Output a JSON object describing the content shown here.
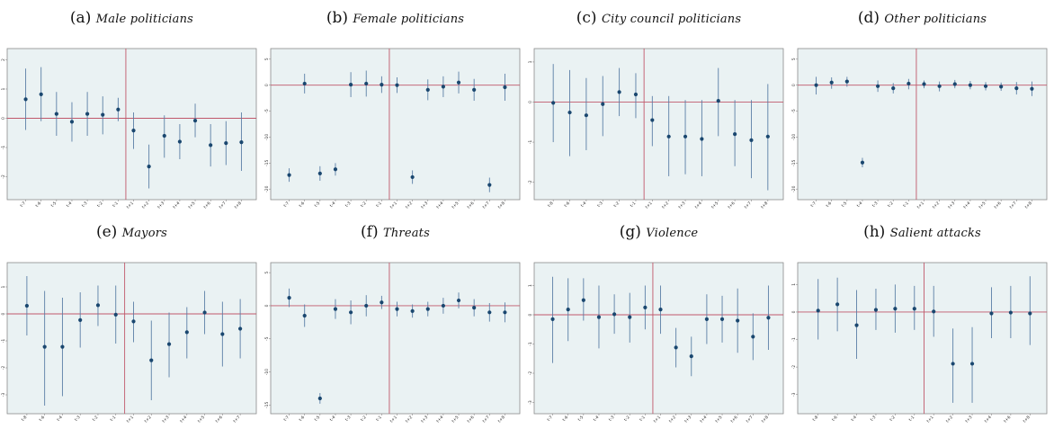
{
  "colors": {
    "marker": "#1a476f",
    "ci": "#5b7fa6",
    "zero_line": "#c0586b",
    "event_line": "#c0586b",
    "frame": "#8a8a8a",
    "plot_bg": "#eaf2f3"
  },
  "chart_data": [
    {
      "type": "scatter",
      "label": "(a)",
      "title": "Male politicians",
      "x": [
        "t-7",
        "t-6",
        "t-5",
        "t-4",
        "t-3",
        "t-2",
        "t-1",
        "t+1",
        "t+2",
        "t+3",
        "t+4",
        "t+5",
        "t+6",
        "t+7",
        "t+8"
      ],
      "event_after_index": 6,
      "ylim": [
        -2.6,
        2.2
      ],
      "yticks": [
        2,
        1,
        0,
        -1,
        -2
      ],
      "y": [
        0.65,
        0.82,
        0.15,
        -0.12,
        0.15,
        0.12,
        0.3,
        -0.42,
        -1.65,
        -0.6,
        -0.8,
        -0.08,
        -0.92,
        -0.85,
        -0.82
      ],
      "lo": [
        -0.4,
        -0.1,
        -0.6,
        -0.8,
        -0.6,
        -0.55,
        -0.1,
        -1.05,
        -2.4,
        -1.35,
        -1.4,
        -0.65,
        -1.65,
        -1.6,
        -1.8
      ],
      "hi": [
        1.7,
        1.75,
        0.9,
        0.55,
        0.9,
        0.75,
        0.7,
        0.2,
        -0.9,
        0.1,
        -0.2,
        0.5,
        -0.2,
        -0.1,
        0.2
      ]
    },
    {
      "type": "scatter",
      "label": "(b)",
      "title": "Female politicians",
      "x": [
        "t-7",
        "t-6",
        "t-5",
        "t-4",
        "t-3",
        "t-2",
        "t-1",
        "t+1",
        "t+2",
        "t+3",
        "t+4",
        "t+5",
        "t+6",
        "t+7",
        "t+8"
      ],
      "event_after_index": 6,
      "ylim": [
        -21,
        6
      ],
      "yticks": [
        5,
        0,
        -5,
        -10,
        -15,
        -20
      ],
      "y": [
        -17.3,
        0.3,
        -17.0,
        -16.2,
        0.1,
        0.3,
        0.1,
        0.0,
        -17.7,
        -0.9,
        -0.3,
        0.5,
        -0.9,
        -19.2,
        -0.4
      ],
      "lo": [
        -18.6,
        -1.6,
        -18.4,
        -17.4,
        -2.3,
        -2.2,
        -1.5,
        -1.5,
        -19.0,
        -2.9,
        -2.3,
        -1.6,
        -3.0,
        -20.6,
        -3.0
      ],
      "hi": [
        -16.0,
        2.2,
        -15.6,
        -15.0,
        2.5,
        2.8,
        1.7,
        1.5,
        -16.4,
        1.1,
        1.7,
        2.6,
        1.2,
        -17.8,
        2.2
      ]
    },
    {
      "type": "scatter",
      "label": "(c)",
      "title": "City council politicians",
      "x": [
        "t-8",
        "t-6",
        "t-4",
        "t-3",
        "t-2",
        "t-1",
        "t+1",
        "t+2",
        "t+3",
        "t+4",
        "t+5",
        "t+6",
        "t+7",
        "t+8"
      ],
      "event_after_index": 5,
      "ylim": [
        -2.3,
        1.2
      ],
      "yticks": [
        1,
        0,
        -1,
        -2
      ],
      "y": [
        -0.02,
        -0.26,
        -0.33,
        -0.05,
        0.25,
        0.19,
        -0.45,
        -0.86,
        -0.86,
        -0.92,
        0.03,
        -0.8,
        -0.95,
        -0.86
      ],
      "lo": [
        -1.0,
        -1.35,
        -1.2,
        -0.85,
        -0.35,
        -0.4,
        -1.1,
        -1.85,
        -1.8,
        -1.85,
        -0.85,
        -1.6,
        -1.9,
        -2.2
      ],
      "hi": [
        0.95,
        0.8,
        0.6,
        0.65,
        0.85,
        0.72,
        0.15,
        0.15,
        0.05,
        0.05,
        0.85,
        0.05,
        0.05,
        0.45
      ]
    },
    {
      "type": "scatter",
      "label": "(d)",
      "title": "Other politicians",
      "x": [
        "t-7",
        "t-6",
        "t-5",
        "t-4",
        "t-3",
        "t-2",
        "t-1",
        "t+1",
        "t+2",
        "t+3",
        "t+4",
        "t+5",
        "t+6",
        "t+7",
        "t+8"
      ],
      "event_after_index": 6,
      "ylim": [
        -21,
        6
      ],
      "yticks": [
        5,
        0,
        -5,
        -10,
        -15,
        -20
      ],
      "y": [
        0.0,
        0.5,
        0.7,
        -14.9,
        -0.2,
        -0.6,
        0.3,
        0.2,
        -0.2,
        0.2,
        0.0,
        -0.2,
        -0.3,
        -0.6,
        -0.7
      ],
      "lo": [
        -1.8,
        -0.7,
        -0.3,
        -15.8,
        -1.3,
        -1.6,
        -0.8,
        -0.6,
        -1.2,
        -0.6,
        -0.8,
        -1.0,
        -1.1,
        -1.8,
        -2.1
      ],
      "hi": [
        1.6,
        1.5,
        1.6,
        -14.0,
        0.9,
        0.4,
        1.2,
        0.9,
        0.7,
        1.0,
        0.8,
        0.6,
        0.5,
        0.6,
        0.7
      ]
    },
    {
      "type": "scatter",
      "label": "(e)",
      "title": "Mayors",
      "x": [
        "t-8",
        "t-6",
        "t-4",
        "t-3",
        "t-2",
        "t-1",
        "t+1",
        "t+2",
        "t+3",
        "t+4",
        "t+5",
        "t+6",
        "t+7"
      ],
      "event_after_index": 5,
      "ylim": [
        -3.5,
        1.7
      ],
      "yticks": [
        1,
        0,
        -1,
        -2,
        -3
      ],
      "y": [
        0.3,
        -1.22,
        -1.22,
        -0.23,
        0.32,
        -0.03,
        -0.28,
        -1.72,
        -1.12,
        -0.68,
        0.05,
        -0.75,
        -0.55
      ],
      "lo": [
        -0.8,
        -3.4,
        -3.05,
        -1.25,
        -0.45,
        -1.1,
        -1.05,
        -3.2,
        -2.35,
        -1.65,
        -0.75,
        -1.95,
        -1.65
      ],
      "hi": [
        1.4,
        0.85,
        0.6,
        0.8,
        1.05,
        1.05,
        0.45,
        -0.25,
        0.05,
        0.25,
        0.85,
        0.45,
        0.55
      ]
    },
    {
      "type": "scatter",
      "label": "(f)",
      "title": "Threats",
      "x": [
        "t-7",
        "t-6",
        "t-5",
        "t-4",
        "t-3",
        "t-2",
        "t-1",
        "t+1",
        "t+2",
        "t+3",
        "t+4",
        "t+5",
        "t+6",
        "t+7",
        "t+8"
      ],
      "event_after_index": 6,
      "ylim": [
        -15.5,
        5.7
      ],
      "yticks": [
        5,
        0,
        -5,
        -10,
        -15
      ],
      "y": [
        1.2,
        -1.5,
        -14.0,
        -0.5,
        -1.0,
        0.0,
        0.5,
        -0.5,
        -0.8,
        -0.5,
        0.0,
        0.8,
        -0.3,
        -1.0,
        -1.0
      ],
      "lo": [
        -0.2,
        -3.2,
        -14.8,
        -2.0,
        -2.8,
        -1.6,
        -0.5,
        -1.6,
        -1.8,
        -1.6,
        -1.2,
        -0.4,
        -1.6,
        -2.4,
        -2.5
      ],
      "hi": [
        2.6,
        0.2,
        -13.2,
        1.0,
        0.8,
        1.6,
        1.5,
        0.6,
        0.2,
        0.6,
        1.2,
        2.0,
        1.0,
        0.4,
        0.5
      ]
    },
    {
      "type": "scatter",
      "label": "(g)",
      "title": "Violence",
      "x": [
        "t-7",
        "t-6",
        "t-5",
        "t-4",
        "t-3",
        "t-2",
        "t-1",
        "t+1",
        "t+2",
        "t+3",
        "t+4",
        "t+5",
        "t+6",
        "t+7",
        "t+8"
      ],
      "event_after_index": 6,
      "ylim": [
        -3.2,
        1.6
      ],
      "yticks": [
        1,
        0,
        -1,
        -2,
        -3
      ],
      "y": [
        -0.15,
        0.18,
        0.5,
        -0.08,
        0.02,
        -0.08,
        0.25,
        0.18,
        -1.12,
        -1.42,
        -0.15,
        -0.15,
        -0.2,
        -0.75,
        -0.1
      ],
      "lo": [
        -1.65,
        -0.9,
        -0.2,
        -1.15,
        -0.65,
        -0.95,
        -0.5,
        -0.65,
        -1.8,
        -2.1,
        -1.0,
        -0.95,
        -1.3,
        -1.55,
        -1.2
      ],
      "hi": [
        1.3,
        1.25,
        1.25,
        1.0,
        0.7,
        0.75,
        1.0,
        1.0,
        -0.45,
        -0.75,
        0.7,
        0.65,
        0.9,
        0.05,
        1.0
      ]
    },
    {
      "type": "scatter",
      "label": "(h)",
      "title": "Salient attacks",
      "x": [
        "t-8",
        "t-6",
        "t-4",
        "t-3",
        "t-2",
        "t-1",
        "t+1",
        "t+2",
        "t+3",
        "t+4",
        "t+6",
        "t+8"
      ],
      "event_after_index": 5,
      "ylim": [
        -3.5,
        1.6
      ],
      "yticks": [
        1,
        0,
        -1,
        -2,
        -3
      ],
      "y": [
        0.05,
        0.28,
        -0.48,
        0.08,
        0.12,
        0.12,
        0.02,
        -1.88,
        -1.88,
        -0.05,
        -0.02,
        -0.05
      ],
      "lo": [
        -1.0,
        -0.7,
        -1.7,
        -0.65,
        -0.75,
        -0.65,
        -0.9,
        -3.3,
        -3.3,
        -0.95,
        -0.95,
        -1.2
      ],
      "hi": [
        1.2,
        1.25,
        0.8,
        0.85,
        1.0,
        0.95,
        0.95,
        -0.6,
        -0.55,
        0.9,
        0.95,
        1.3
      ]
    }
  ]
}
